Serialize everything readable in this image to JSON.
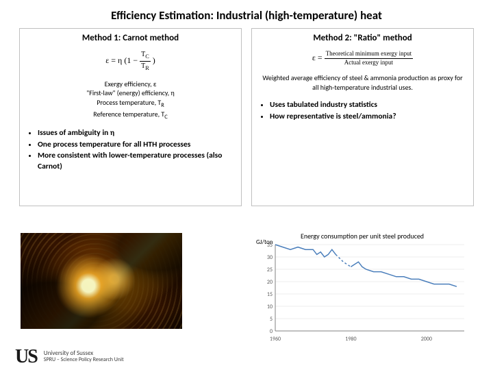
{
  "title": "Efficiency Estimation: Industrial (high-temperature) heat",
  "method1": {
    "title": "Method 1: Carnot method",
    "eq_prefix": "ε = η",
    "eq_open": "(1 −",
    "eq_num": "T",
    "eq_num_sub": "C",
    "eq_den": "T",
    "eq_den_sub": "R",
    "eq_close": ")",
    "defs": [
      "Exergy efficiency, ε",
      "\"First-law\" (energy) efficiency, η",
      "Process temperature, T",
      "Reference temperature, T"
    ],
    "def_sub3": "R",
    "def_sub4": "C",
    "bullets": [
      "Issues of ambiguity in η",
      "One process temperature for all HTH processes",
      "More consistent with lower-temperature processes (also Carnot)"
    ]
  },
  "method2": {
    "title": "Method 2: \"Ratio\" method",
    "eq_prefix": "ε =",
    "eq_num": "Theoretical minimum exergy input",
    "eq_den": "Actual exergy input",
    "desc": "Weighted average efficiency of steel & ammonia production as proxy for all high-temperature industrial uses.",
    "bullets": [
      "Uses tabulated industry statistics",
      "How representative is steel/ammonia?"
    ]
  },
  "chart": {
    "title": "Energy consumption per unit steel produced",
    "ylabel": "GJ/ton",
    "ylim": [
      0,
      35
    ],
    "ytick_step": 5,
    "xlim": [
      1960,
      2010
    ],
    "xticks": [
      1960,
      1980,
      2000
    ],
    "line_color": "#4a7ebb",
    "axis_color": "#808080",
    "grid_color": "#d9d9d9",
    "background_color": "#ffffff",
    "line_width": 1.5,
    "dash_break": {
      "from": 1976,
      "to": 1980
    },
    "series": [
      {
        "x": 1960,
        "y": 35
      },
      {
        "x": 1962,
        "y": 34
      },
      {
        "x": 1964,
        "y": 33
      },
      {
        "x": 1966,
        "y": 34
      },
      {
        "x": 1968,
        "y": 33
      },
      {
        "x": 1970,
        "y": 33
      },
      {
        "x": 1971,
        "y": 31
      },
      {
        "x": 1972,
        "y": 32
      },
      {
        "x": 1973,
        "y": 30
      },
      {
        "x": 1974,
        "y": 31
      },
      {
        "x": 1975,
        "y": 33
      },
      {
        "x": 1976,
        "y": 31
      },
      {
        "x": 1978,
        "y": 28
      },
      {
        "x": 1980,
        "y": 26
      },
      {
        "x": 1981,
        "y": 27
      },
      {
        "x": 1982,
        "y": 28
      },
      {
        "x": 1983,
        "y": 26
      },
      {
        "x": 1984,
        "y": 25
      },
      {
        "x": 1986,
        "y": 24
      },
      {
        "x": 1988,
        "y": 24
      },
      {
        "x": 1990,
        "y": 23
      },
      {
        "x": 1992,
        "y": 22
      },
      {
        "x": 1994,
        "y": 22
      },
      {
        "x": 1996,
        "y": 21
      },
      {
        "x": 1998,
        "y": 21
      },
      {
        "x": 2000,
        "y": 20
      },
      {
        "x": 2002,
        "y": 19
      },
      {
        "x": 2004,
        "y": 19
      },
      {
        "x": 2006,
        "y": 19
      },
      {
        "x": 2008,
        "y": 18
      }
    ]
  },
  "footer": {
    "line1": "University of Sussex",
    "line2": "SPRU – Science Policy Research Unit"
  }
}
